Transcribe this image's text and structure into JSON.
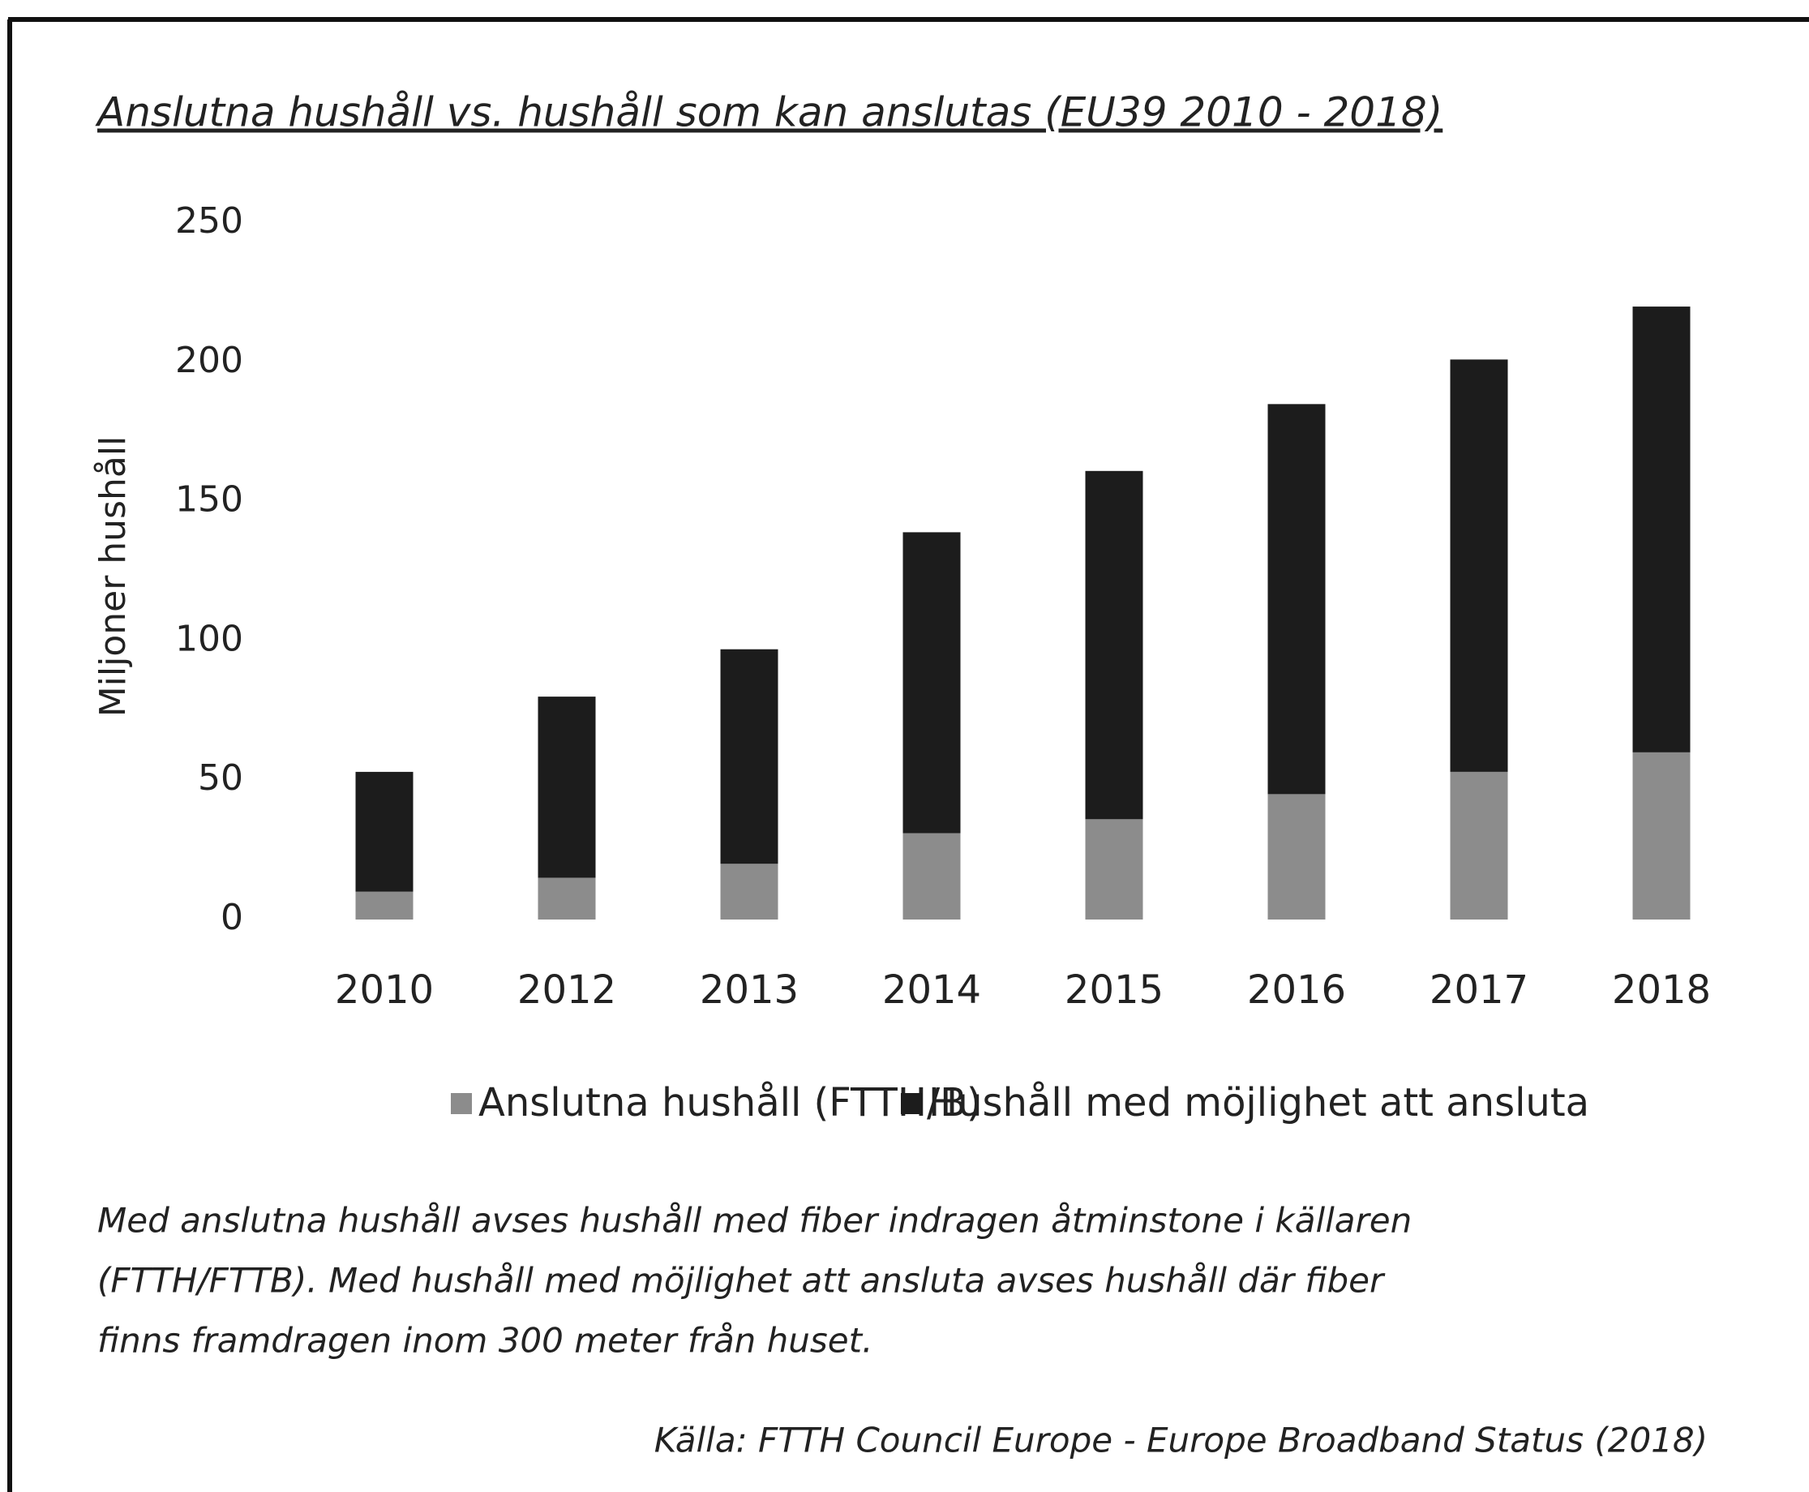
{
  "chart_data": {
    "type": "stacked_bar",
    "title": "Anslutna hushåll vs. hushåll som kan anslutas (EU39 2010 - 2018)",
    "y_label": "Miljoner hushåll",
    "categories": [
      "2010",
      "2012",
      "2013",
      "2014",
      "2015",
      "2016",
      "2017",
      "2018"
    ],
    "series": [
      {
        "name": "Anslutna hushåll (FTTH/B)",
        "color": "#8c8c8c",
        "values": [
          10,
          15,
          20,
          31,
          36,
          45,
          53,
          60
        ]
      },
      {
        "name": "Hushåll med möjlighet att ansluta",
        "color": "#1c1c1c",
        "values": [
          43,
          65,
          77,
          108,
          125,
          140,
          148,
          160
        ]
      }
    ],
    "ylim": [
      0,
      250
    ],
    "yticks": [
      0,
      50,
      100,
      150,
      200,
      250
    ],
    "grid": false,
    "note": [
      "Med anslutna hushåll avses hushåll med fiber indragen åtminstone i källaren",
      "(FTTH/FTTB). Med hushåll med möjlighet att ansluta avses hushåll där fiber",
      "finns framdragen inom 300 meter från huset."
    ],
    "source": "Källa:  FTTH Council Europe - Europe Broadband Status (2018)"
  }
}
